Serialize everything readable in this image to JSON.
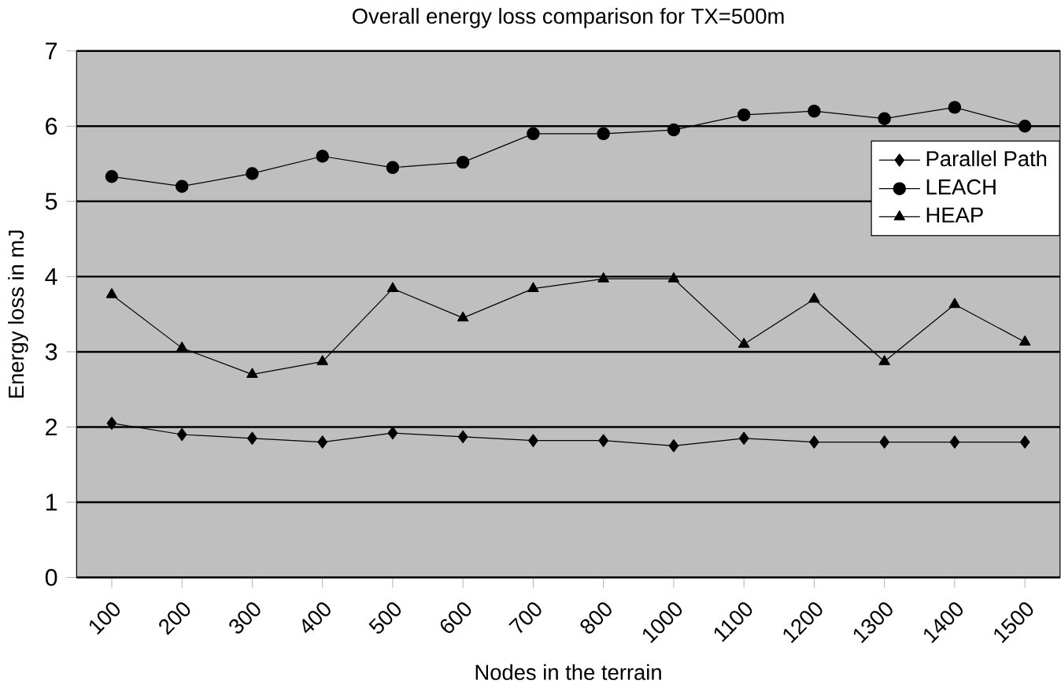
{
  "chart_data": {
    "type": "line",
    "title": "Overall energy loss comparison for TX=500m",
    "xlabel": "Nodes in the terrain",
    "ylabel": "Energy loss in mJ",
    "categories": [
      "100",
      "200",
      "300",
      "400",
      "500",
      "600",
      "700",
      "800",
      "1000",
      "1100",
      "1200",
      "1300",
      "1400",
      "1500"
    ],
    "series": [
      {
        "name": "Parallel Path",
        "color": "#000000",
        "marker": "diamond",
        "values": [
          2.05,
          1.9,
          1.85,
          1.8,
          1.92,
          1.87,
          1.82,
          1.82,
          1.75,
          1.85,
          1.8,
          1.8,
          1.8,
          1.8
        ]
      },
      {
        "name": "LEACH",
        "color": "#000000",
        "marker": "circle",
        "values": [
          5.33,
          5.2,
          5.37,
          5.6,
          5.45,
          5.52,
          5.9,
          5.9,
          5.95,
          6.15,
          6.2,
          6.1,
          6.25,
          6.0
        ]
      },
      {
        "name": "HEAP",
        "color": "#000000",
        "marker": "triangle",
        "values": [
          3.76,
          3.05,
          2.7,
          2.87,
          3.84,
          3.45,
          3.84,
          3.97,
          3.97,
          3.1,
          3.7,
          2.87,
          3.63,
          3.13
        ]
      }
    ],
    "ylim": [
      0,
      7
    ],
    "yticks": [
      0,
      1,
      2,
      3,
      4,
      5,
      6,
      7
    ],
    "grid": "y",
    "legend": "top right"
  }
}
